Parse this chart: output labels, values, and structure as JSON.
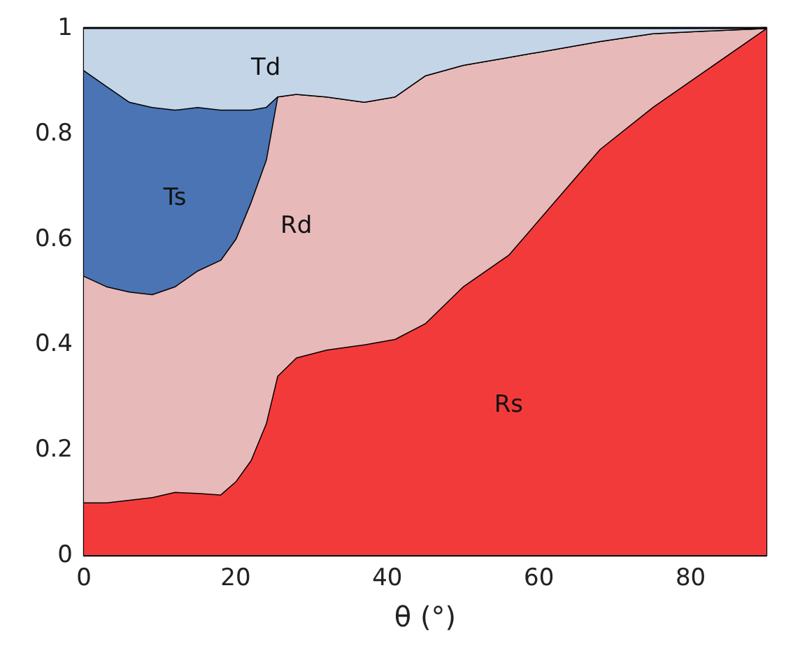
{
  "chart_data": {
    "type": "area",
    "stacked": true,
    "xlabel": "θ (°)",
    "x": [
      0,
      3,
      6,
      9,
      12,
      15,
      18,
      20,
      22,
      24,
      25.5,
      28,
      32,
      37,
      41,
      45,
      50,
      56,
      62,
      68,
      75,
      82,
      90
    ],
    "series": [
      {
        "name": "Rs",
        "color": "#f33a3a",
        "values": [
          0.1,
          0.1,
          0.105,
          0.11,
          0.12,
          0.118,
          0.115,
          0.14,
          0.18,
          0.25,
          0.34,
          0.375,
          0.39,
          0.4,
          0.41,
          0.44,
          0.51,
          0.57,
          0.67,
          0.77,
          0.85,
          0.92,
          1.0
        ]
      },
      {
        "name": "Rd",
        "color": "#e8b9b9",
        "values": [
          0.43,
          0.41,
          0.395,
          0.385,
          0.39,
          0.422,
          0.445,
          0.46,
          0.49,
          0.5,
          0.53,
          0.5,
          0.48,
          0.46,
          0.46,
          0.47,
          0.42,
          0.375,
          0.29,
          0.205,
          0.14,
          0.075,
          0
        ]
      },
      {
        "name": "Ts",
        "color": "#4a74b4",
        "values": [
          0.39,
          0.38,
          0.36,
          0.355,
          0.335,
          0.31,
          0.285,
          0.245,
          0.175,
          0.1,
          0,
          0,
          0,
          0,
          0,
          0,
          0,
          0,
          0,
          0,
          0,
          0,
          0
        ]
      },
      {
        "name": "Td",
        "color": "#c5d5e8",
        "values": [
          0.08,
          0.11,
          0.14,
          0.15,
          0.155,
          0.15,
          0.155,
          0.155,
          0.155,
          0.15,
          0.13,
          0.125,
          0.13,
          0.14,
          0.13,
          0.09,
          0.07,
          0.055,
          0.04,
          0.025,
          0.01,
          0.005,
          0
        ]
      }
    ],
    "xlim": [
      0,
      90
    ],
    "xticks": [
      0,
      20,
      40,
      60,
      80
    ],
    "ylim": [
      0,
      1
    ],
    "yticks": [
      0,
      0.2,
      0.4,
      0.6,
      0.8,
      1
    ],
    "legend": false
  }
}
